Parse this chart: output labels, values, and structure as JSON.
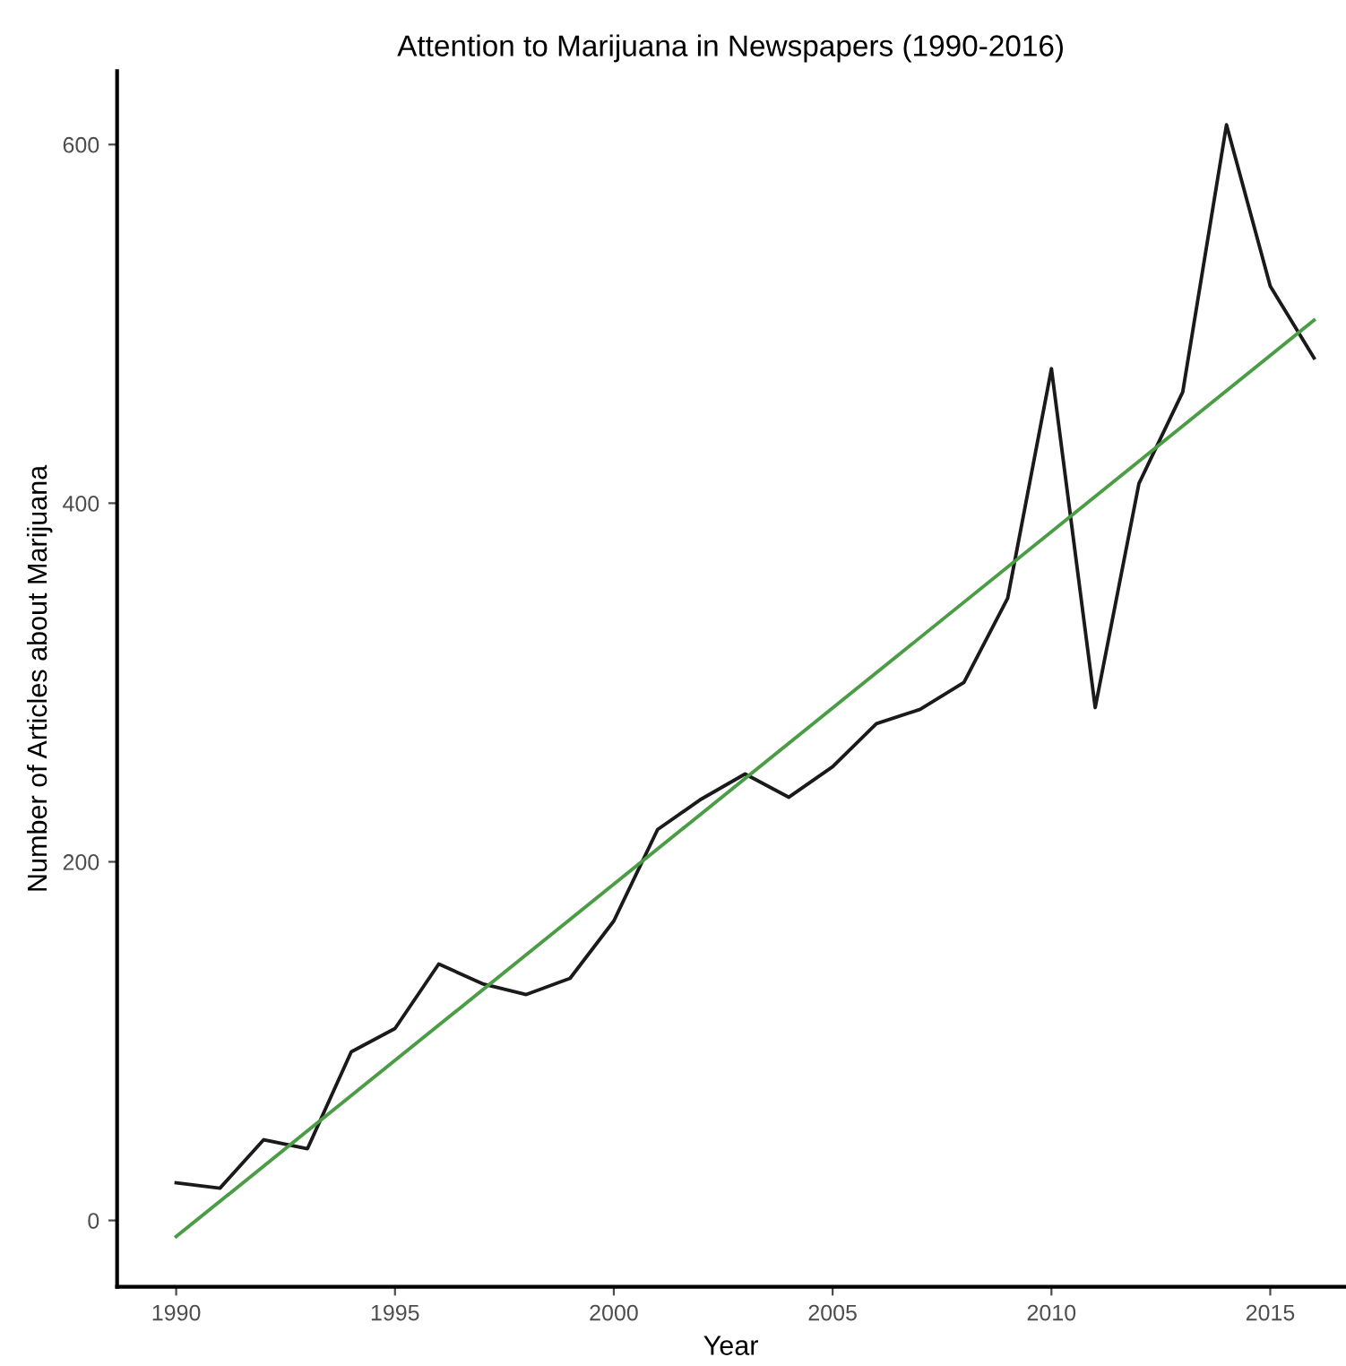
{
  "chart_data": {
    "type": "line",
    "title": "Attention to Marijuana in Newspapers (1990-2016)",
    "xlabel": "Year",
    "ylabel": "Number of Articles about Marijuana",
    "x": [
      1990,
      1991,
      1992,
      1993,
      1994,
      1995,
      1996,
      1997,
      1998,
      1999,
      2000,
      2001,
      2002,
      2003,
      2004,
      2005,
      2006,
      2007,
      2008,
      2009,
      2010,
      2011,
      2012,
      2013,
      2014,
      2015,
      2016
    ],
    "series": [
      {
        "color": "#1a1a1a",
        "values": [
          21,
          18,
          45,
          40,
          94,
          107,
          143,
          132,
          126,
          135,
          167,
          218,
          235,
          249,
          236,
          253,
          277,
          285,
          300,
          347,
          475,
          286,
          411,
          462,
          611,
          521,
          481
        ]
      },
      {
        "type": "line",
        "color": "#4a9c45",
        "x": [
          1990,
          2016
        ],
        "values": [
          -9,
          502
        ]
      }
    ],
    "xlim": [
      1988.65,
      2016.7
    ],
    "ylim": [
      -37,
      641
    ],
    "xticks": [
      1990,
      1995,
      2000,
      2005,
      2010,
      2015
    ],
    "yticks": [
      0,
      200,
      400,
      600
    ],
    "grid": false,
    "legend": false
  }
}
